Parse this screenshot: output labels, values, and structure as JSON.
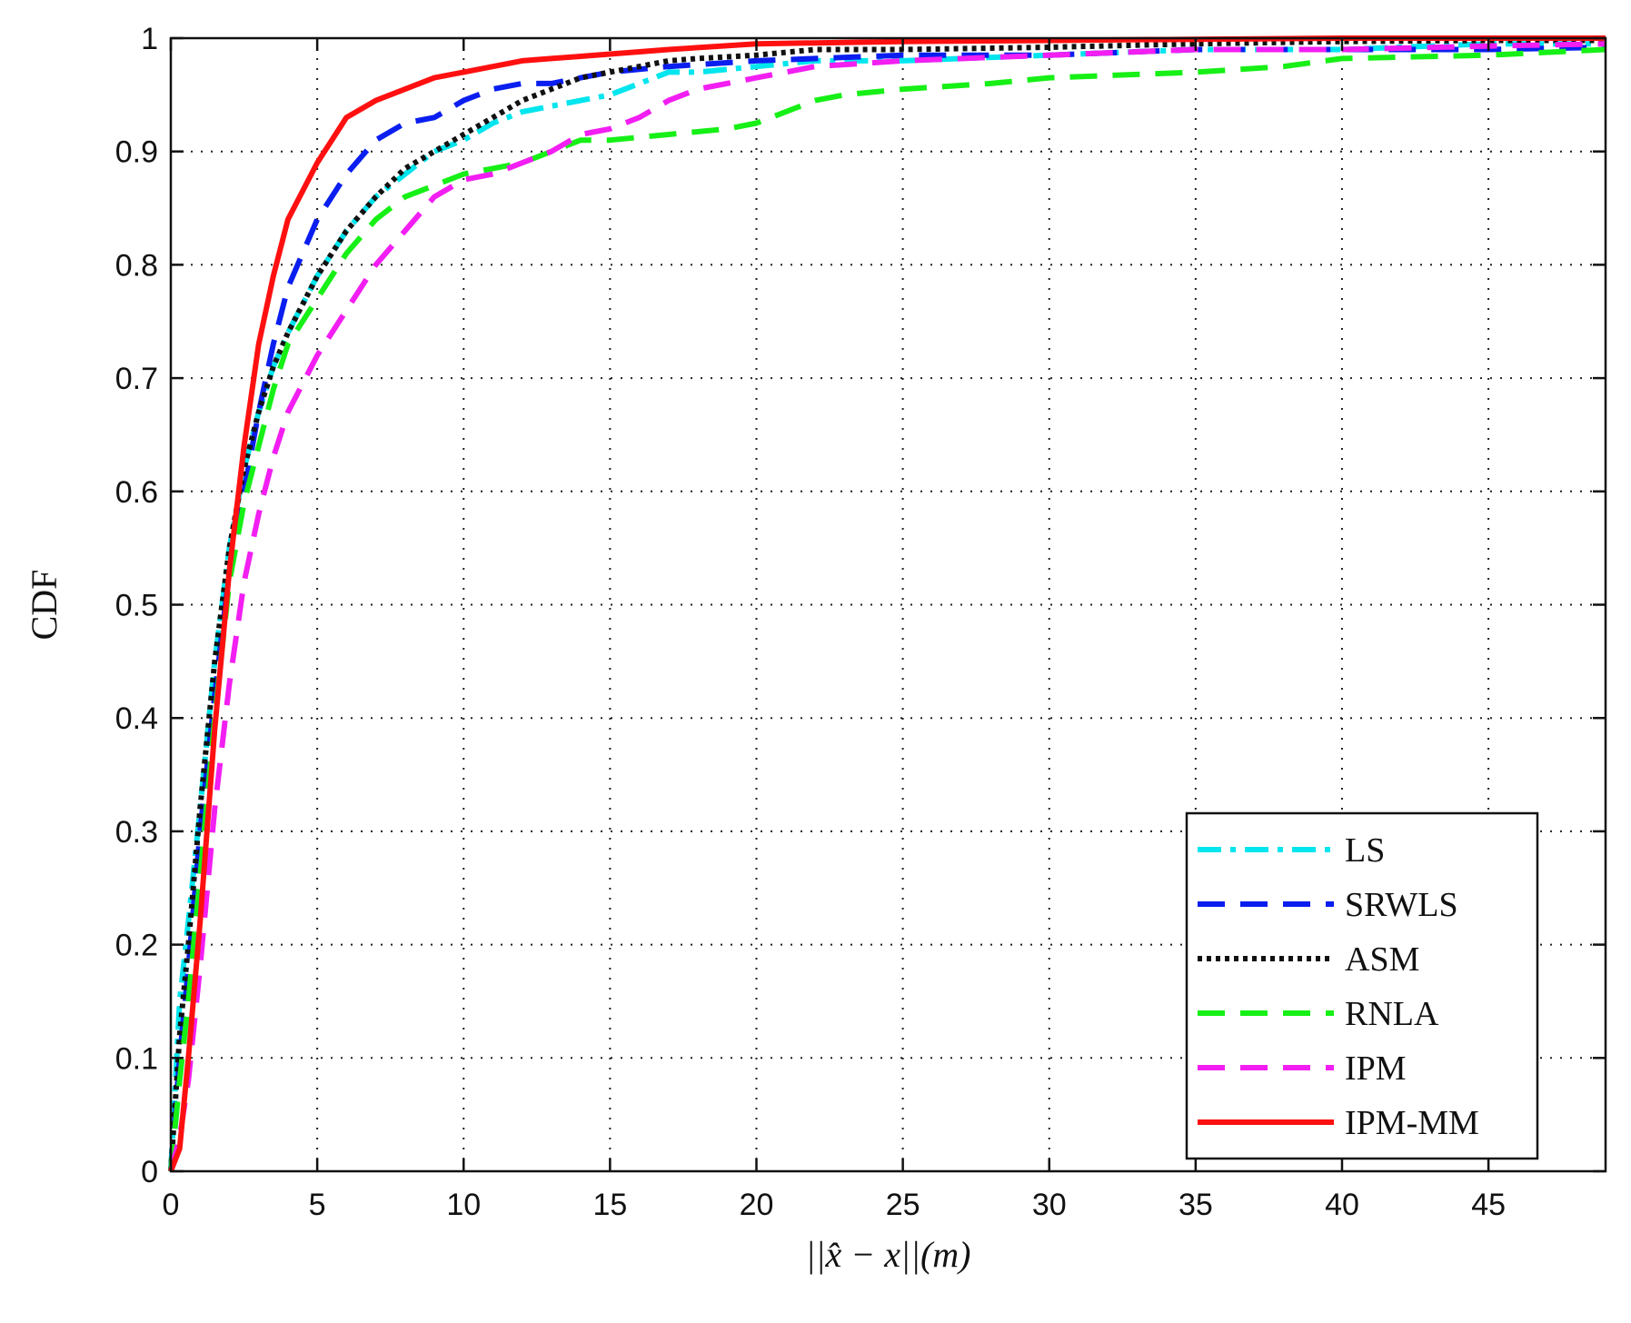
{
  "chart_data": {
    "type": "line",
    "title": "",
    "xlabel": "||x̂ − x||(m)",
    "ylabel": "CDF",
    "xlim": [
      0,
      49
    ],
    "ylim": [
      0,
      1
    ],
    "grid": true,
    "legend_position": "bottom-right",
    "xticks": [
      0,
      5,
      10,
      15,
      20,
      25,
      30,
      35,
      40,
      45
    ],
    "yticks": [
      0,
      0.1,
      0.2,
      0.3,
      0.4,
      0.5,
      0.6,
      0.7,
      0.8,
      0.9,
      1
    ],
    "xtick_labels": [
      "0",
      "5",
      "10",
      "15",
      "20",
      "25",
      "30",
      "35",
      "40",
      "45"
    ],
    "ytick_labels": [
      "0",
      "0.1",
      "0.2",
      "0.3",
      "0.4",
      "0.5",
      "0.6",
      "0.7",
      "0.8",
      "0.9",
      "1"
    ],
    "series": [
      {
        "name": "LS",
        "color": "#00e5ee",
        "style": "dashdot",
        "x": [
          0,
          0.3,
          0.6,
          1.0,
          1.5,
          2.0,
          2.5,
          3.0,
          3.5,
          4.0,
          5.0,
          6.0,
          7.0,
          8.0,
          9.0,
          10.0,
          11.0,
          12.0,
          13.0,
          14.0,
          15.0,
          16.0,
          17.0,
          18.0,
          20.0,
          22.0,
          25.0,
          30.0,
          35.0,
          40.0,
          45.0,
          49.0
        ],
        "y": [
          0,
          0.15,
          0.22,
          0.32,
          0.45,
          0.55,
          0.62,
          0.67,
          0.71,
          0.74,
          0.79,
          0.83,
          0.86,
          0.88,
          0.9,
          0.91,
          0.925,
          0.935,
          0.94,
          0.945,
          0.95,
          0.96,
          0.97,
          0.97,
          0.975,
          0.98,
          0.98,
          0.985,
          0.99,
          0.99,
          0.995,
          0.995
        ]
      },
      {
        "name": "SRWLS",
        "color": "#0a1ef0",
        "style": "dashed",
        "x": [
          0,
          0.3,
          0.6,
          1.0,
          1.5,
          2.0,
          2.5,
          3.0,
          3.5,
          4.0,
          4.5,
          5.0,
          6.0,
          7.0,
          8.0,
          9.0,
          10.0,
          11.0,
          12.0,
          13.0,
          14.0,
          15.0,
          17.0,
          20.0,
          25.0,
          30.0,
          35.0,
          40.0,
          45.0,
          49.0
        ],
        "y": [
          0,
          0.1,
          0.18,
          0.3,
          0.42,
          0.53,
          0.6,
          0.67,
          0.73,
          0.78,
          0.81,
          0.84,
          0.88,
          0.91,
          0.925,
          0.93,
          0.945,
          0.955,
          0.96,
          0.96,
          0.965,
          0.97,
          0.975,
          0.98,
          0.985,
          0.985,
          0.99,
          0.99,
          0.99,
          0.992
        ]
      },
      {
        "name": "ASM",
        "color": "#111111",
        "style": "dotted",
        "x": [
          0,
          0.3,
          0.6,
          1.0,
          1.5,
          2.0,
          2.5,
          3.0,
          3.5,
          4.0,
          5.0,
          6.0,
          7.0,
          8.0,
          9.0,
          10.0,
          11.0,
          12.0,
          13.0,
          14.0,
          15.0,
          16.0,
          17.0,
          18.0,
          20.0,
          22.0,
          25.0,
          30.0,
          35.0,
          40.0,
          45.0,
          49.0
        ],
        "y": [
          0,
          0.12,
          0.2,
          0.32,
          0.45,
          0.55,
          0.62,
          0.67,
          0.71,
          0.74,
          0.79,
          0.83,
          0.86,
          0.885,
          0.9,
          0.915,
          0.93,
          0.945,
          0.955,
          0.965,
          0.97,
          0.975,
          0.98,
          0.982,
          0.985,
          0.99,
          0.99,
          0.992,
          0.995,
          0.997,
          0.998,
          0.998
        ]
      },
      {
        "name": "RNLA",
        "color": "#16f016",
        "style": "dashed",
        "x": [
          0,
          0.3,
          0.6,
          1.0,
          1.5,
          2.0,
          2.5,
          3.0,
          3.5,
          4.0,
          5.0,
          6.0,
          7.0,
          8.0,
          9.0,
          10.0,
          11.0,
          12.0,
          13.0,
          14.0,
          15.0,
          17.0,
          19.0,
          20.0,
          21.0,
          22.0,
          23.0,
          25.0,
          28.0,
          30.0,
          35.0,
          38.0,
          40.0,
          45.0,
          49.0
        ],
        "y": [
          0,
          0.08,
          0.15,
          0.26,
          0.4,
          0.52,
          0.59,
          0.64,
          0.69,
          0.73,
          0.77,
          0.81,
          0.84,
          0.86,
          0.87,
          0.88,
          0.885,
          0.89,
          0.9,
          0.91,
          0.91,
          0.915,
          0.92,
          0.925,
          0.935,
          0.945,
          0.95,
          0.955,
          0.96,
          0.965,
          0.97,
          0.975,
          0.982,
          0.985,
          0.99
        ]
      },
      {
        "name": "IPM",
        "color": "#f21ef2",
        "style": "dashed",
        "x": [
          0,
          0.3,
          0.6,
          1.0,
          1.5,
          2.0,
          2.5,
          3.0,
          3.5,
          4.0,
          5.0,
          6.0,
          7.0,
          8.0,
          9.0,
          10.0,
          11.0,
          12.0,
          13.0,
          14.0,
          15.0,
          16.0,
          17.0,
          18.0,
          20.0,
          22.0,
          25.0,
          30.0,
          35.0,
          40.0,
          45.0,
          49.0
        ],
        "y": [
          0,
          0.03,
          0.08,
          0.18,
          0.32,
          0.43,
          0.52,
          0.58,
          0.63,
          0.67,
          0.72,
          0.76,
          0.8,
          0.83,
          0.86,
          0.875,
          0.88,
          0.89,
          0.9,
          0.915,
          0.92,
          0.93,
          0.945,
          0.955,
          0.965,
          0.975,
          0.98,
          0.985,
          0.99,
          0.99,
          0.993,
          0.995
        ]
      },
      {
        "name": "IPM-MM",
        "color": "#ff1010",
        "style": "solid",
        "x": [
          0,
          0.3,
          0.6,
          1.0,
          1.5,
          2.0,
          2.5,
          3.0,
          3.5,
          4.0,
          5.0,
          6.0,
          7.0,
          8.0,
          9.0,
          10.0,
          11.0,
          12.0,
          13.0,
          14.0,
          15.0,
          17.0,
          20.0,
          25.0,
          30.0,
          35.0,
          40.0,
          45.0,
          49.0
        ],
        "y": [
          0,
          0.02,
          0.1,
          0.22,
          0.39,
          0.53,
          0.64,
          0.73,
          0.79,
          0.84,
          0.89,
          0.93,
          0.945,
          0.955,
          0.965,
          0.97,
          0.975,
          0.98,
          0.982,
          0.984,
          0.986,
          0.99,
          0.995,
          0.997,
          0.998,
          0.999,
          1.0,
          1.0,
          1.0
        ]
      }
    ]
  }
}
